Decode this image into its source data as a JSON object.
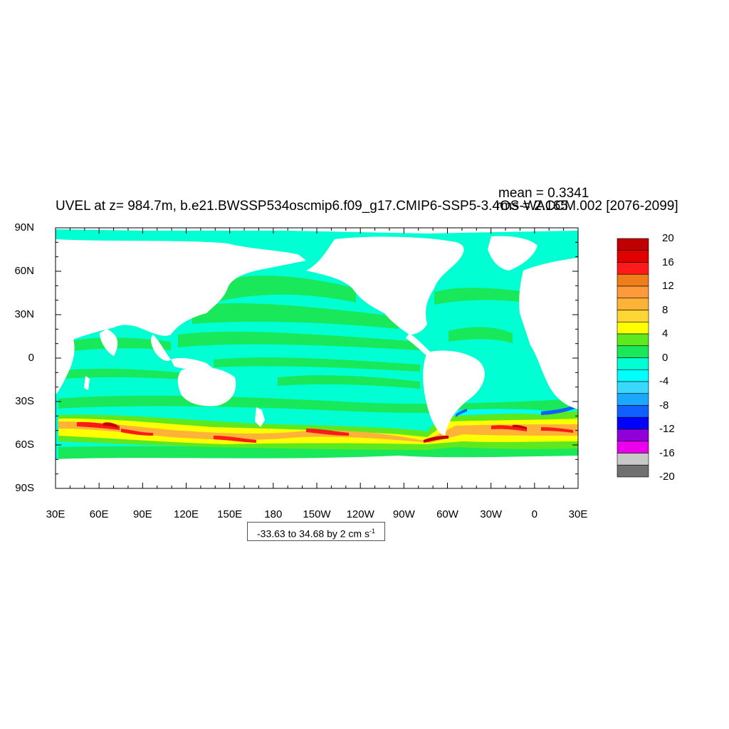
{
  "title": "UVEL at z= 984.7m, b.e21.BWSSP534oscmip6.f09_g17.CMIP6-SSP5-3.4OS-WACCM.002 [2076-2099]",
  "stats": {
    "mean": "mean = 0.3341",
    "rms": "rms = 2.165"
  },
  "contour_info": {
    "text": "-33.63 to 34.68 by 2 cm s",
    "unit_superscript": "-1"
  },
  "lon_labels": [
    "30E",
    "60E",
    "90E",
    "120E",
    "150E",
    "180",
    "150W",
    "120W",
    "90W",
    "60W",
    "30W",
    "0",
    "30E"
  ],
  "lat_labels": [
    "90N",
    "60N",
    "30N",
    "0",
    "30S",
    "60S",
    "90S"
  ],
  "colorbar": {
    "labels": [
      "20",
      "16",
      "12",
      "8",
      "4",
      "0",
      "-4",
      "-8",
      "-12",
      "-16",
      "-20"
    ],
    "colors": [
      "#c00000",
      "#e00000",
      "#ff1a1a",
      "#ee7d1a",
      "#ff9a3a",
      "#ffb238",
      "#ffd634",
      "#ffff00",
      "#5ee81e",
      "#18e85a",
      "#00ffd2",
      "#00ffff",
      "#38d8ff",
      "#1ca8ff",
      "#1060ff",
      "#0000ff",
      "#9000d8",
      "#ec00ec",
      "#c8c8c8",
      "#707070"
    ]
  },
  "map": {
    "ocean_background": "#00ffd2",
    "land": "#ffffff",
    "levels": {
      "green": "#18e85a",
      "lightgreen": "#5ee81e",
      "yellow": "#ffff00",
      "orange": "#ffb238",
      "red": "#ff1a1a",
      "darkred": "#c00000",
      "cyan": "#00ffff",
      "blue": "#1060ff"
    }
  }
}
